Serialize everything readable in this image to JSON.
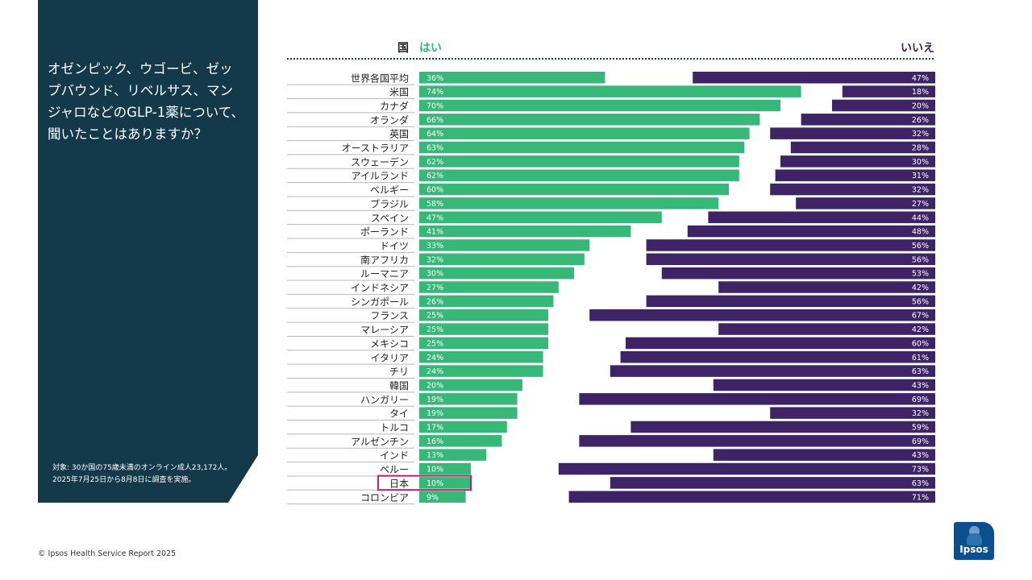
{
  "panel": {
    "question": "オゼンピック、ウゴービ、ゼップバウンド、リベルサス、マンジャロなどのGLP-1薬について、聞いたことはありますか？",
    "note_line1": "対象: 30か国の75歳未満のオンライン成人23,172人。",
    "note_line2": "2025年7月25日から8月8日に調査を実施。"
  },
  "footer": {
    "copyright": "© Ipsos Health Service Report 2025"
  },
  "logo": {
    "text": "Ipsos"
  },
  "colors": {
    "yes": "#37b878",
    "no": "#3e2466",
    "highlight": "#c0216a",
    "panel": "#13394a"
  },
  "chart_data": {
    "type": "bar",
    "subtype": "diverging-stacked-100",
    "headers": {
      "category": "国",
      "yes": "はい",
      "no": "いいえ"
    },
    "unit": "%",
    "highlight_category": "日本",
    "categories": [
      "世界各国平均",
      "米国",
      "カナダ",
      "オランダ",
      "英国",
      "オーストラリア",
      "スウェーデン",
      "アイルランド",
      "ベルギー",
      "ブラジル",
      "スペイン",
      "ポーランド",
      "ドイツ",
      "南アフリカ",
      "ルーマニア",
      "インドネシア",
      "シンガポール",
      "フランス",
      "マレーシア",
      "メキシコ",
      "イタリア",
      "チリ",
      "韓国",
      "ハンガリー",
      "タイ",
      "トルコ",
      "アルゼンチン",
      "インド",
      "ペルー",
      "日本",
      "コロンビア"
    ],
    "series": [
      {
        "name": "はい",
        "values": [
          36,
          74,
          70,
          66,
          64,
          63,
          62,
          62,
          60,
          58,
          47,
          41,
          33,
          32,
          30,
          27,
          26,
          25,
          25,
          25,
          24,
          24,
          20,
          19,
          19,
          17,
          16,
          13,
          10,
          10,
          9
        ]
      },
      {
        "name": "いいえ",
        "values": [
          47,
          18,
          20,
          26,
          32,
          28,
          30,
          31,
          32,
          27,
          44,
          48,
          56,
          56,
          53,
          42,
          56,
          67,
          42,
          60,
          61,
          63,
          43,
          69,
          32,
          59,
          69,
          43,
          73,
          63,
          71
        ]
      }
    ]
  }
}
